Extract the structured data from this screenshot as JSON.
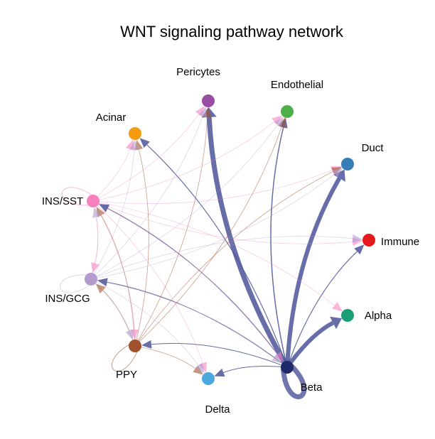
{
  "title": "WNT signaling pathway network",
  "nodes": [
    {
      "id": "Pericytes",
      "label": "Pericytes",
      "color": "#984EA3"
    },
    {
      "id": "Endothelial",
      "label": "Endothelial",
      "color": "#4DAF4A"
    },
    {
      "id": "Acinar",
      "label": "Acinar",
      "color": "#F39C12"
    },
    {
      "id": "Duct",
      "label": "Duct",
      "color": "#377EB8"
    },
    {
      "id": "INS/SST",
      "label": "INS/SST",
      "color": "#F781BF"
    },
    {
      "id": "Immune",
      "label": "Immune",
      "color": "#E41A1C"
    },
    {
      "id": "INS/GCG",
      "label": "INS/GCG",
      "color": "#B39BCF"
    },
    {
      "id": "Alpha",
      "label": "Alpha",
      "color": "#1B9E77"
    },
    {
      "id": "PPY",
      "label": "PPY",
      "color": "#A0522D"
    },
    {
      "id": "Delta",
      "label": "Delta",
      "color": "#4EA8E0"
    },
    {
      "id": "Beta",
      "label": "Beta",
      "color": "#1F2A6B"
    }
  ],
  "edge_colors": {
    "Beta": "#4B5499",
    "INS/SST": "#F781BF",
    "PPY": "#A0522D",
    "INS/GCG": "#B39BCF"
  },
  "edges": [
    {
      "source": "Beta",
      "target": "Beta",
      "weight": 7
    },
    {
      "source": "Beta",
      "target": "Pericytes",
      "weight": 7
    },
    {
      "source": "Beta",
      "target": "Duct",
      "weight": 6
    },
    {
      "source": "Beta",
      "target": "Alpha",
      "weight": 6
    },
    {
      "source": "Beta",
      "target": "Endothelial",
      "weight": 1.5
    },
    {
      "source": "Beta",
      "target": "Immune",
      "weight": 1.2
    },
    {
      "source": "Beta",
      "target": "Acinar",
      "weight": 1.2
    },
    {
      "source": "Beta",
      "target": "INS/SST",
      "weight": 1.0
    },
    {
      "source": "Beta",
      "target": "INS/GCG",
      "weight": 1.0
    },
    {
      "source": "Beta",
      "target": "PPY",
      "weight": 1.0
    },
    {
      "source": "Beta",
      "target": "Delta",
      "weight": 1.0
    },
    {
      "source": "INS/SST",
      "target": "INS/SST",
      "weight": 0.8
    },
    {
      "source": "INS/SST",
      "target": "Acinar",
      "weight": 0.6
    },
    {
      "source": "INS/SST",
      "target": "Pericytes",
      "weight": 0.6
    },
    {
      "source": "INS/SST",
      "target": "Endothelial",
      "weight": 0.6
    },
    {
      "source": "INS/SST",
      "target": "Duct",
      "weight": 0.6
    },
    {
      "source": "INS/SST",
      "target": "Immune",
      "weight": 0.6
    },
    {
      "source": "INS/SST",
      "target": "Alpha",
      "weight": 0.6
    },
    {
      "source": "INS/SST",
      "target": "Beta",
      "weight": 0.6
    },
    {
      "source": "INS/SST",
      "target": "Delta",
      "weight": 0.6
    },
    {
      "source": "INS/SST",
      "target": "PPY",
      "weight": 0.6
    },
    {
      "source": "INS/SST",
      "target": "INS/GCG",
      "weight": 0.6
    },
    {
      "source": "PPY",
      "target": "PPY",
      "weight": 0.8
    },
    {
      "source": "PPY",
      "target": "Acinar",
      "weight": 0.8
    },
    {
      "source": "PPY",
      "target": "Pericytes",
      "weight": 0.8
    },
    {
      "source": "PPY",
      "target": "Endothelial",
      "weight": 0.8
    },
    {
      "source": "PPY",
      "target": "Duct",
      "weight": 0.8
    },
    {
      "source": "PPY",
      "target": "INS/SST",
      "weight": 0.8
    },
    {
      "source": "PPY",
      "target": "INS/GCG",
      "weight": 0.8
    },
    {
      "source": "PPY",
      "target": "Delta",
      "weight": 0.8
    },
    {
      "source": "INS/GCG",
      "target": "INS/GCG",
      "weight": 0.6
    },
    {
      "source": "INS/GCG",
      "target": "Acinar",
      "weight": 0.6
    },
    {
      "source": "INS/GCG",
      "target": "Pericytes",
      "weight": 0.6
    },
    {
      "source": "INS/GCG",
      "target": "Endothelial",
      "weight": 0.6
    },
    {
      "source": "INS/GCG",
      "target": "Duct",
      "weight": 0.6
    },
    {
      "source": "INS/GCG",
      "target": "Immune",
      "weight": 0.6
    },
    {
      "source": "INS/GCG",
      "target": "INS/SST",
      "weight": 0.6
    },
    {
      "source": "INS/GCG",
      "target": "PPY",
      "weight": 0.6
    },
    {
      "source": "INS/GCG",
      "target": "Delta",
      "weight": 0.6
    },
    {
      "source": "INS/GCG",
      "target": "Beta",
      "weight": 0.6
    }
  ]
}
